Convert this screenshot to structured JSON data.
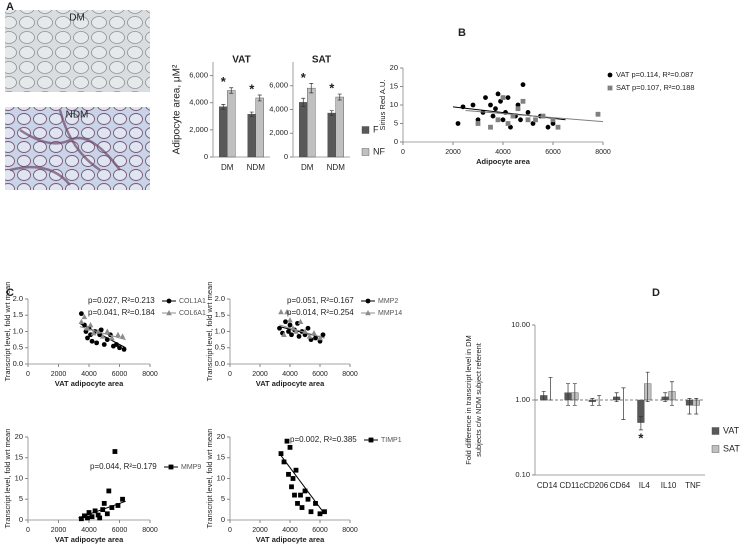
{
  "panel_labels": [
    "A",
    "B",
    "C",
    "D"
  ],
  "images": [
    {
      "label": "DM"
    },
    {
      "label": "NDM"
    }
  ],
  "chart_data": [
    {
      "type": "bar",
      "title": "VAT",
      "ylabel": "Adipocyte area, μM²",
      "categories": [
        "DM",
        "NDM"
      ],
      "series": [
        {
          "color": "#595959",
          "values": [
            3700,
            3150
          ],
          "errors": [
            180,
            160
          ]
        },
        {
          "color": "#c0c0c0",
          "values": [
            4900,
            4350
          ],
          "errors": [
            200,
            220
          ]
        }
      ],
      "significance": [
        "*",
        "*"
      ],
      "ylim": [
        0,
        7000
      ],
      "yticks": [
        0,
        {
          "value": 2000,
          "label": "2,000"
        },
        {
          "value": 4000,
          "label": "4,000"
        },
        {
          "value": 6000,
          "label": "6,000"
        }
      ]
    },
    {
      "type": "bar",
      "title": "SAT",
      "categories": [
        "DM",
        "NDM"
      ],
      "series": [
        {
          "name": "F",
          "color": "#595959",
          "values": [
            4600,
            3700
          ],
          "errors": [
            350,
            200
          ]
        },
        {
          "name": "NF",
          "color": "#c0c0c0",
          "values": [
            5800,
            5050
          ],
          "errors": [
            400,
            250
          ]
        }
      ],
      "significance": [
        "*",
        "*"
      ],
      "ylim": [
        0,
        8000
      ],
      "yticks": [
        0,
        {
          "value": 2000,
          "label": "2,000"
        },
        {
          "value": 4000,
          "label": "4,000"
        },
        {
          "value": 6000,
          "label": "6,000"
        }
      ]
    },
    {
      "type": "scatter",
      "xlabel": "Adipocyte area",
      "ylabel": "Sirius  Red A.U.",
      "xlim": [
        0,
        8000
      ],
      "xticks": [
        0,
        2000,
        4000,
        6000,
        8000
      ],
      "ylim": [
        0,
        20
      ],
      "yticks": [
        0,
        5,
        10,
        15,
        20
      ],
      "series": [
        {
          "name": "VAT",
          "stats": "p=0.114, R²=0.087",
          "color": "#000000",
          "marker": "circle",
          "x": [
            2200,
            2400,
            2800,
            3000,
            3200,
            3300,
            3500,
            3600,
            3700,
            3800,
            3900,
            4000,
            4100,
            4200,
            4300,
            4500,
            4600,
            4700,
            4800,
            5000,
            5200,
            5500,
            5800,
            6000
          ],
          "values": [
            5,
            9.5,
            10,
            6,
            8,
            12,
            10,
            7,
            9,
            13,
            11,
            6,
            8,
            12,
            4,
            7,
            10,
            6,
            15.5,
            8,
            5,
            7,
            4,
            5
          ],
          "trend": {
            "x": [
              2000,
              6500
            ],
            "values": [
              9.5,
              6
            ]
          }
        },
        {
          "name": "SAT",
          "stats": "p=0.107, R²=0.188",
          "color": "#808080",
          "marker": "square",
          "x": [
            3000,
            3500,
            3800,
            4000,
            4200,
            4400,
            4600,
            4800,
            5000,
            5300,
            5600,
            6000,
            6200,
            7800
          ],
          "values": [
            5,
            4,
            6,
            12,
            5,
            7,
            9,
            11,
            6,
            6,
            7,
            6,
            4,
            7.5
          ],
          "trend": {
            "x": [
              2500,
              8000
            ],
            "values": [
              8.5,
              5.5
            ]
          }
        }
      ]
    },
    {
      "type": "scatter",
      "xlabel": "VAT adipocyte area",
      "ylabel": "Transcript level, fold wrt mean",
      "xlim": [
        0,
        8000
      ],
      "xticks": [
        0,
        2000,
        4000,
        6000,
        8000
      ],
      "ylim": [
        0,
        2
      ],
      "yticks": [
        {
          "value": 0,
          "label": "0.0"
        },
        0.5,
        {
          "value": 1,
          "label": "1.0"
        },
        1.5,
        {
          "value": 2,
          "label": "2.0"
        }
      ],
      "series": [
        {
          "name": "COL1A1",
          "stats": "p=0.027, R²=0.213",
          "color": "#000000",
          "marker": "circle",
          "x": [
            3500,
            3700,
            3800,
            3900,
            4000,
            4100,
            4200,
            4400,
            4500,
            4700,
            4800,
            5000,
            5200,
            5400,
            5600,
            5800,
            6000,
            6300
          ],
          "values": [
            1.55,
            1.2,
            1.0,
            0.8,
            1.1,
            0.9,
            0.7,
            1.0,
            0.65,
            0.9,
            1.05,
            0.6,
            0.75,
            0.9,
            0.55,
            0.6,
            0.5,
            0.45
          ],
          "trend": {
            "x": [
              3400,
              6400
            ],
            "values": [
              1.25,
              0.5
            ]
          }
        },
        {
          "name": "COL6A1",
          "stats": "p=0.041, R²=0.184",
          "color": "#8c8c8c",
          "marker": "triangle",
          "x": [
            3500,
            3700,
            3900,
            4100,
            4300,
            4600,
            4900,
            5200,
            5500,
            5900,
            6200
          ],
          "values": [
            1.3,
            1.45,
            1.1,
            1.2,
            0.95,
            1.0,
            0.85,
            1.0,
            0.8,
            0.9,
            0.85
          ],
          "trend": {
            "x": [
              3400,
              6400
            ],
            "values": [
              1.15,
              0.75
            ]
          }
        }
      ]
    },
    {
      "type": "scatter",
      "xlabel": "VAT adipocyte area",
      "ylabel": "Transcript level, fold wrt mean",
      "xlim": [
        0,
        8000
      ],
      "xticks": [
        0,
        2000,
        4000,
        6000,
        8000
      ],
      "ylim": [
        0,
        2
      ],
      "yticks": [
        {
          "value": 0,
          "label": "0.0"
        },
        0.5,
        {
          "value": 1,
          "label": "1.0"
        },
        1.5,
        {
          "value": 2,
          "label": "2.0"
        }
      ],
      "series": [
        {
          "name": "MMP2",
          "stats": "p=0.051, R²=0.167",
          "color": "#000000",
          "marker": "circle",
          "x": [
            3300,
            3500,
            3700,
            3900,
            4000,
            4100,
            4300,
            4500,
            4600,
            4800,
            5000,
            5200,
            5400,
            5700,
            6000,
            6200
          ],
          "values": [
            1.1,
            0.95,
            1.3,
            1.0,
            1.2,
            0.9,
            1.05,
            1.25,
            0.85,
            1.0,
            0.9,
            1.1,
            0.75,
            0.8,
            0.7,
            0.9
          ],
          "trend": {
            "x": [
              3300,
              6300
            ],
            "values": [
              1.15,
              0.8
            ]
          }
        },
        {
          "name": "MMP14",
          "stats": "p=0.014, R²=0.254",
          "color": "#8c8c8c",
          "marker": "triangle",
          "x": [
            3400,
            3600,
            3800,
            4000,
            4200,
            4400,
            4700,
            5000,
            5300,
            5600,
            6000
          ],
          "values": [
            1.6,
            0.9,
            1.6,
            1.35,
            1.1,
            1.0,
            1.3,
            1.0,
            0.85,
            0.95,
            0.8
          ],
          "trend": {
            "x": [
              3300,
              6300
            ],
            "values": [
              1.2,
              0.8
            ]
          }
        }
      ]
    },
    {
      "type": "scatter",
      "xlabel": "VAT adipocyte area",
      "ylabel": "Transcript level, fold wrt mean",
      "xlim": [
        0,
        8000
      ],
      "xticks": [
        0,
        2000,
        4000,
        6000,
        8000
      ],
      "ylim": [
        0,
        20
      ],
      "yticks": [
        0,
        5,
        10,
        15,
        20
      ],
      "series": [
        {
          "name": "MMP9",
          "stats": "p=0.044, R²=0.179",
          "color": "#000000",
          "marker": "square",
          "x": [
            3500,
            3700,
            3900,
            4000,
            4200,
            4400,
            4600,
            4700,
            4900,
            5000,
            5200,
            5300,
            5500,
            5700,
            5900,
            6200
          ],
          "values": [
            0.3,
            1.0,
            0.5,
            1.8,
            0.8,
            2.2,
            1.2,
            0.5,
            2.5,
            4.0,
            1.5,
            7.0,
            3.0,
            16.5,
            3.5,
            5.0
          ],
          "trend": {
            "x": [
              3300,
              6400
            ],
            "values": [
              0.5,
              4.5
            ]
          }
        }
      ]
    },
    {
      "type": "scatter",
      "xlabel": "VAT adipocyte area",
      "ylabel": "Transcript level, fold wrt mean",
      "xlim": [
        0,
        8000
      ],
      "xticks": [
        0,
        2000,
        4000,
        6000,
        8000
      ],
      "ylim": [
        0,
        20
      ],
      "yticks": [
        0,
        5,
        10,
        15,
        20
      ],
      "series": [
        {
          "name": "TIMP1",
          "stats": "p=0.002, R²=0.385",
          "color": "#000000",
          "marker": "square",
          "x": [
            3400,
            3600,
            3800,
            3900,
            4000,
            4100,
            4200,
            4300,
            4400,
            4500,
            4700,
            4800,
            5000,
            5200,
            5400,
            5700,
            6000,
            6300
          ],
          "values": [
            16,
            14,
            19,
            11,
            17.5,
            8,
            10,
            6,
            12,
            4,
            6,
            3,
            7,
            5,
            2,
            4,
            1.5,
            2
          ],
          "trend": {
            "x": [
              3300,
              6300
            ],
            "values": [
              16,
              1.5
            ]
          }
        }
      ]
    },
    {
      "type": "bar",
      "log_y": true,
      "ylabel": [
        "Fold difference in transcript level in DM",
        "subjects c/w NDM subject referent"
      ],
      "categories": [
        "CD14",
        "CD11c",
        "CD206",
        "CD64",
        "IL4",
        "IL10",
        "TNF"
      ],
      "series": [
        {
          "name": "VAT",
          "color": "#595959",
          "values": [
            1.15,
            1.25,
            0.95,
            1.1,
            0.5,
            1.1,
            0.85
          ],
          "errors": [
            0.15,
            0.4,
            0.1,
            0.15,
            0.1,
            0.15,
            0.2
          ]
        },
        {
          "name": "SAT",
          "color": "#c0c0c0",
          "values": [
            1.0,
            1.25,
            1.0,
            1.0,
            1.65,
            1.3,
            0.85
          ],
          "errors": [
            1.0,
            0.4,
            0.15,
            0.45,
            0.7,
            0.45,
            0.2
          ]
        }
      ],
      "significance": [
        null,
        null,
        null,
        null,
        "*",
        null,
        null
      ],
      "reference_line": 1,
      "ylim": [
        0.1,
        10
      ],
      "yticks": [
        {
          "value": 0.1,
          "label": "0.10"
        },
        {
          "value": 1,
          "label": "1.00"
        },
        {
          "value": 10,
          "label": "10.00"
        }
      ]
    }
  ]
}
